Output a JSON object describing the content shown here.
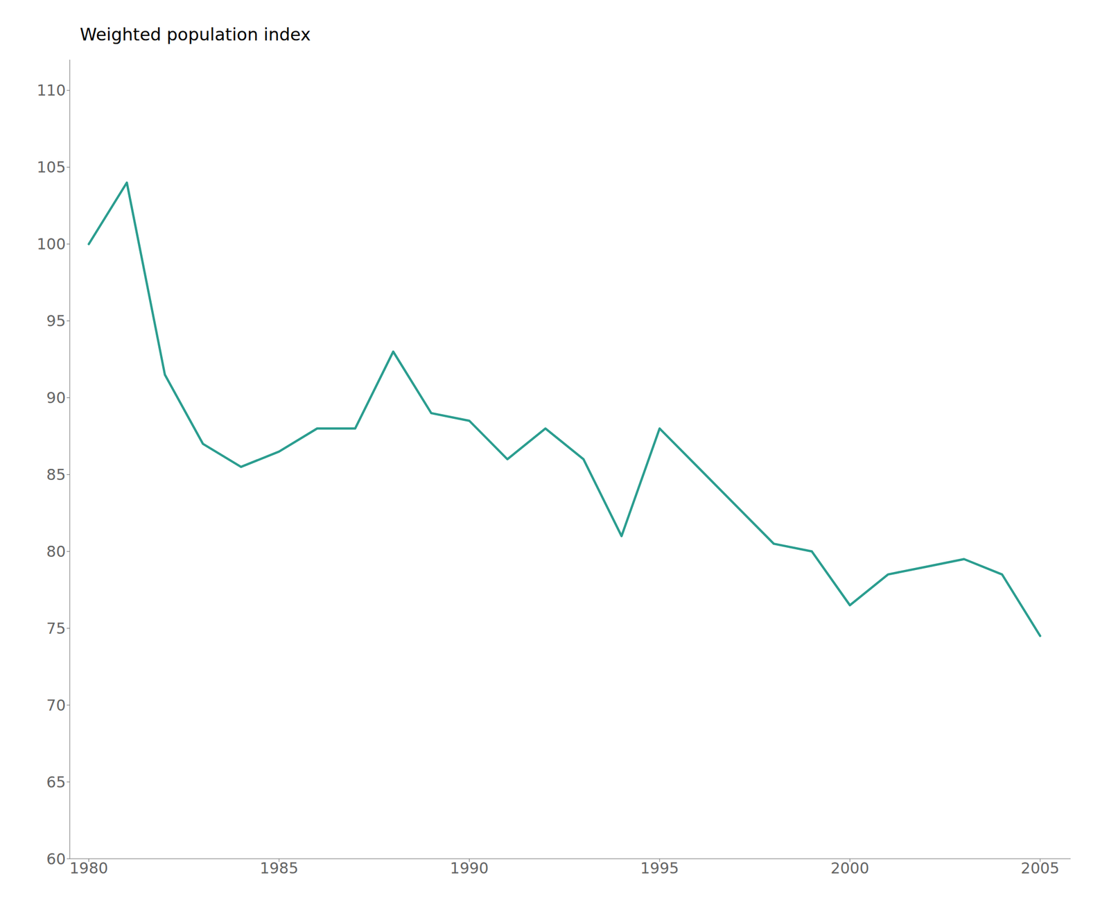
{
  "chart_data": {
    "type": "line",
    "ylabel": "Weighted population index",
    "x": [
      1980,
      1981,
      1982,
      1983,
      1984,
      1985,
      1986,
      1987,
      1988,
      1989,
      1990,
      1991,
      1992,
      1993,
      1994,
      1995,
      1996,
      1997,
      1998,
      1999,
      2000,
      2001,
      2002,
      2003,
      2004,
      2005
    ],
    "values": [
      100,
      104,
      91.5,
      87,
      85.5,
      86.5,
      88,
      88,
      93,
      89,
      88.5,
      86,
      88,
      86,
      81,
      88,
      85.5,
      83,
      80.5,
      80,
      76.5,
      78.5,
      79,
      79.5,
      78.5,
      74.5
    ],
    "color": "#2a9d8f",
    "xlim": [
      1979.5,
      2005.8
    ],
    "ylim": [
      60,
      112
    ],
    "xticks": [
      1980,
      1985,
      1990,
      1995,
      2000,
      2005
    ],
    "yticks": [
      60,
      65,
      70,
      75,
      80,
      85,
      90,
      95,
      100,
      105,
      110
    ],
    "grid": false
  }
}
